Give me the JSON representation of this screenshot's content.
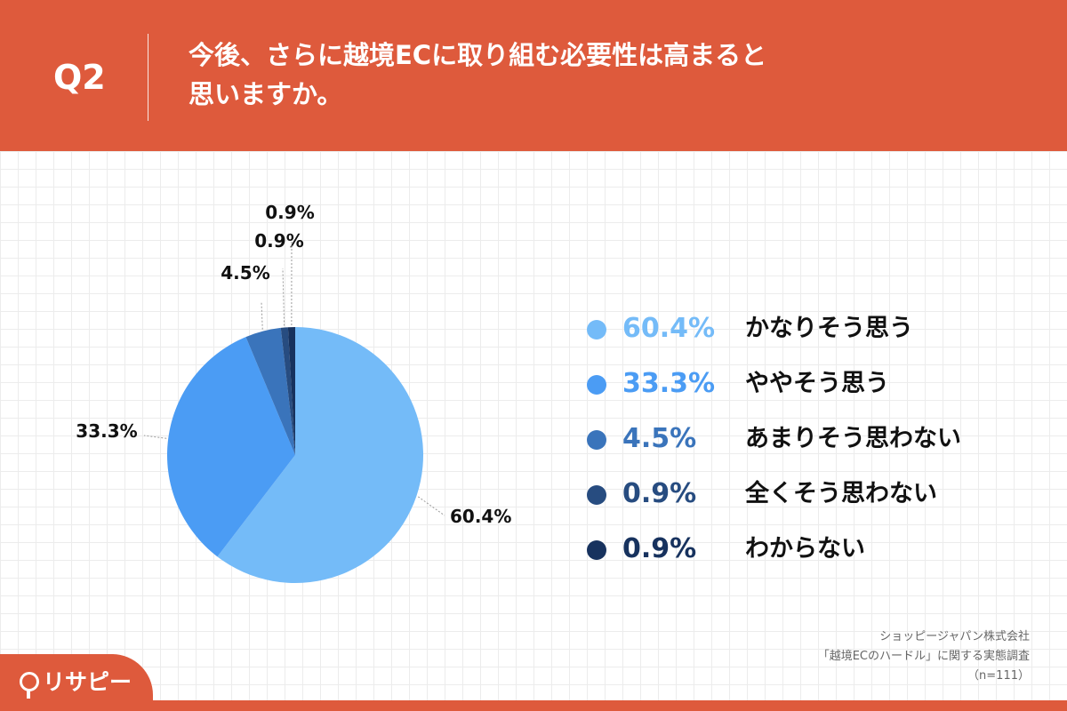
{
  "header": {
    "question_label": "Q2",
    "title_line1": "今後、さらに越境ECに取り組む必要性は高まると",
    "title_line2": "思いますか。"
  },
  "chart_data": {
    "type": "pie",
    "categories": [
      "かなりそう思う",
      "ややそう思う",
      "あまりそう思わない",
      "全くそう思わない",
      "わからない"
    ],
    "values": [
      60.4,
      33.3,
      4.5,
      0.9,
      0.9
    ],
    "value_labels": [
      "60.4%",
      "33.3%",
      "4.5%",
      "0.9%",
      "0.9%"
    ],
    "colors": [
      "#74bbf8",
      "#4b9cf4",
      "#3a74bb",
      "#274c80",
      "#17325e"
    ],
    "legend_text_colors": [
      "#74bbf8",
      "#4b9cf4",
      "#3a74bb",
      "#274c80",
      "#17325e"
    ],
    "start_angle_deg": 0,
    "direction": "clockwise",
    "legend_position": "right"
  },
  "source": {
    "line1": "ショッピージャパン株式会社",
    "line2": "「越境ECのハードル」に関する実態調査",
    "line3": "（n=111）"
  },
  "logo": {
    "text": "リサピー"
  }
}
